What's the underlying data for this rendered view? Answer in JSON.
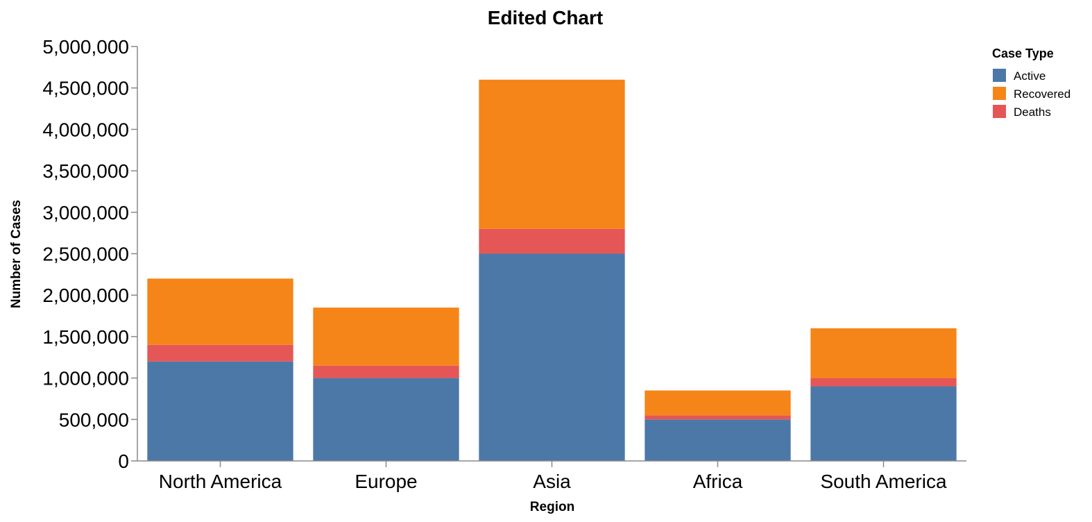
{
  "chart_data": {
    "type": "bar",
    "stacked": true,
    "title": "Edited Chart",
    "xlabel": "Region",
    "ylabel": "Number of Cases",
    "categories": [
      "North America",
      "Europe",
      "Asia",
      "Africa",
      "South America"
    ],
    "series": [
      {
        "name": "Active",
        "color": "#4c78a8",
        "values": [
          1200000,
          1000000,
          2500000,
          500000,
          900000
        ]
      },
      {
        "name": "Deaths",
        "color": "#e45756",
        "values": [
          200000,
          150000,
          300000,
          50000,
          100000
        ]
      },
      {
        "name": "Recovered",
        "color": "#f58518",
        "values": [
          800000,
          700000,
          1800000,
          300000,
          600000
        ]
      }
    ],
    "ylim": [
      0,
      5000000
    ],
    "y_ticks": [
      0,
      500000,
      1000000,
      1500000,
      2000000,
      2500000,
      3000000,
      3500000,
      4000000,
      4500000,
      5000000
    ],
    "y_tick_labels": [
      "0",
      "500,000",
      "1,000,000",
      "1,500,000",
      "2,000,000",
      "2,500,000",
      "3,000,000",
      "3,500,000",
      "4,000,000",
      "4,500,000",
      "5,000,000"
    ],
    "grid": false,
    "legend": {
      "title": "Case Type",
      "position": "top-right",
      "items": [
        {
          "label": "Active",
          "color": "#4c78a8"
        },
        {
          "label": "Recovered",
          "color": "#f58518"
        },
        {
          "label": "Deaths",
          "color": "#e45756"
        }
      ]
    }
  }
}
